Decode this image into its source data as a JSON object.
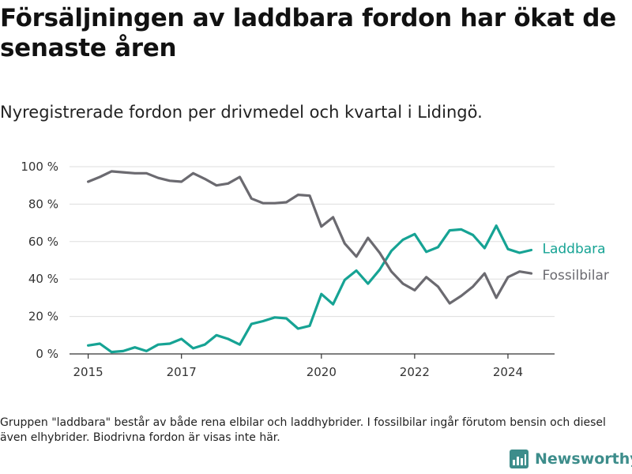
{
  "title": "Försäljningen av laddbara fordon har ökat de senaste åren",
  "subtitle": "Nyregistrerade fordon per drivmedel och kvartal i Lidingö.",
  "note": "Gruppen \"laddbara\" består av både rena elbilar och laddhybrider. I fossilbilar ingår förutom bensin och diesel även elhybrider. Biodrivna fordon är visas inte här.",
  "logo": {
    "text": "Newsworthy",
    "icon": "newsworthy-logo-icon"
  },
  "colors": {
    "laddbara": "#16a394",
    "fossil": "#6b6a70",
    "grid": "#dddddd"
  },
  "chart_data": {
    "type": "line",
    "title": "Försäljningen av laddbara fordon har ökat de senaste åren",
    "xlabel": "",
    "ylabel": "",
    "ylim": [
      0,
      100
    ],
    "xlim": [
      2014.6,
      2025.0
    ],
    "yticks": [
      0,
      20,
      40,
      60,
      80,
      100
    ],
    "ytick_labels": [
      "0 %",
      "20 %",
      "40 %",
      "60 %",
      "80 %",
      "100 %"
    ],
    "xticks": [
      2015,
      2017,
      2020,
      2022,
      2024
    ],
    "xtick_labels": [
      "2015",
      "2017",
      "2020",
      "2022",
      "2024"
    ],
    "grid": true,
    "legend": "direct labels at line ends",
    "x": [
      2015.0,
      2015.25,
      2015.5,
      2015.75,
      2016.0,
      2016.25,
      2016.5,
      2016.75,
      2017.0,
      2017.25,
      2017.5,
      2017.75,
      2018.0,
      2018.25,
      2018.5,
      2018.75,
      2019.0,
      2019.25,
      2019.5,
      2019.75,
      2020.0,
      2020.25,
      2020.5,
      2020.75,
      2021.0,
      2021.25,
      2021.5,
      2021.75,
      2022.0,
      2022.25,
      2022.5,
      2022.75,
      2023.0,
      2023.25,
      2023.5,
      2023.75,
      2024.0,
      2024.25,
      2024.5
    ],
    "series": [
      {
        "name": "Laddbara",
        "values": [
          4.5,
          5.5,
          1,
          1.5,
          3.5,
          1.5,
          5,
          5.5,
          8,
          3,
          5,
          10,
          8,
          5,
          16,
          17.5,
          19.5,
          19,
          13.5,
          15,
          32,
          26.5,
          39.5,
          44.5,
          37.5,
          45,
          55,
          61,
          64,
          54.5,
          57,
          66,
          66.5,
          63.5,
          56.5,
          68.5,
          56,
          54,
          55.5
        ]
      },
      {
        "name": "Fossilbilar",
        "values": [
          92,
          94.5,
          97.5,
          97,
          96.5,
          96.5,
          94,
          92.5,
          92,
          96.5,
          93.5,
          90,
          91,
          94.5,
          83,
          80.5,
          80.5,
          81,
          85,
          84.5,
          68,
          73,
          59,
          52,
          62,
          54,
          44,
          37.5,
          34,
          41,
          36,
          27,
          31,
          36,
          43,
          30,
          41,
          44,
          43
        ]
      }
    ]
  }
}
